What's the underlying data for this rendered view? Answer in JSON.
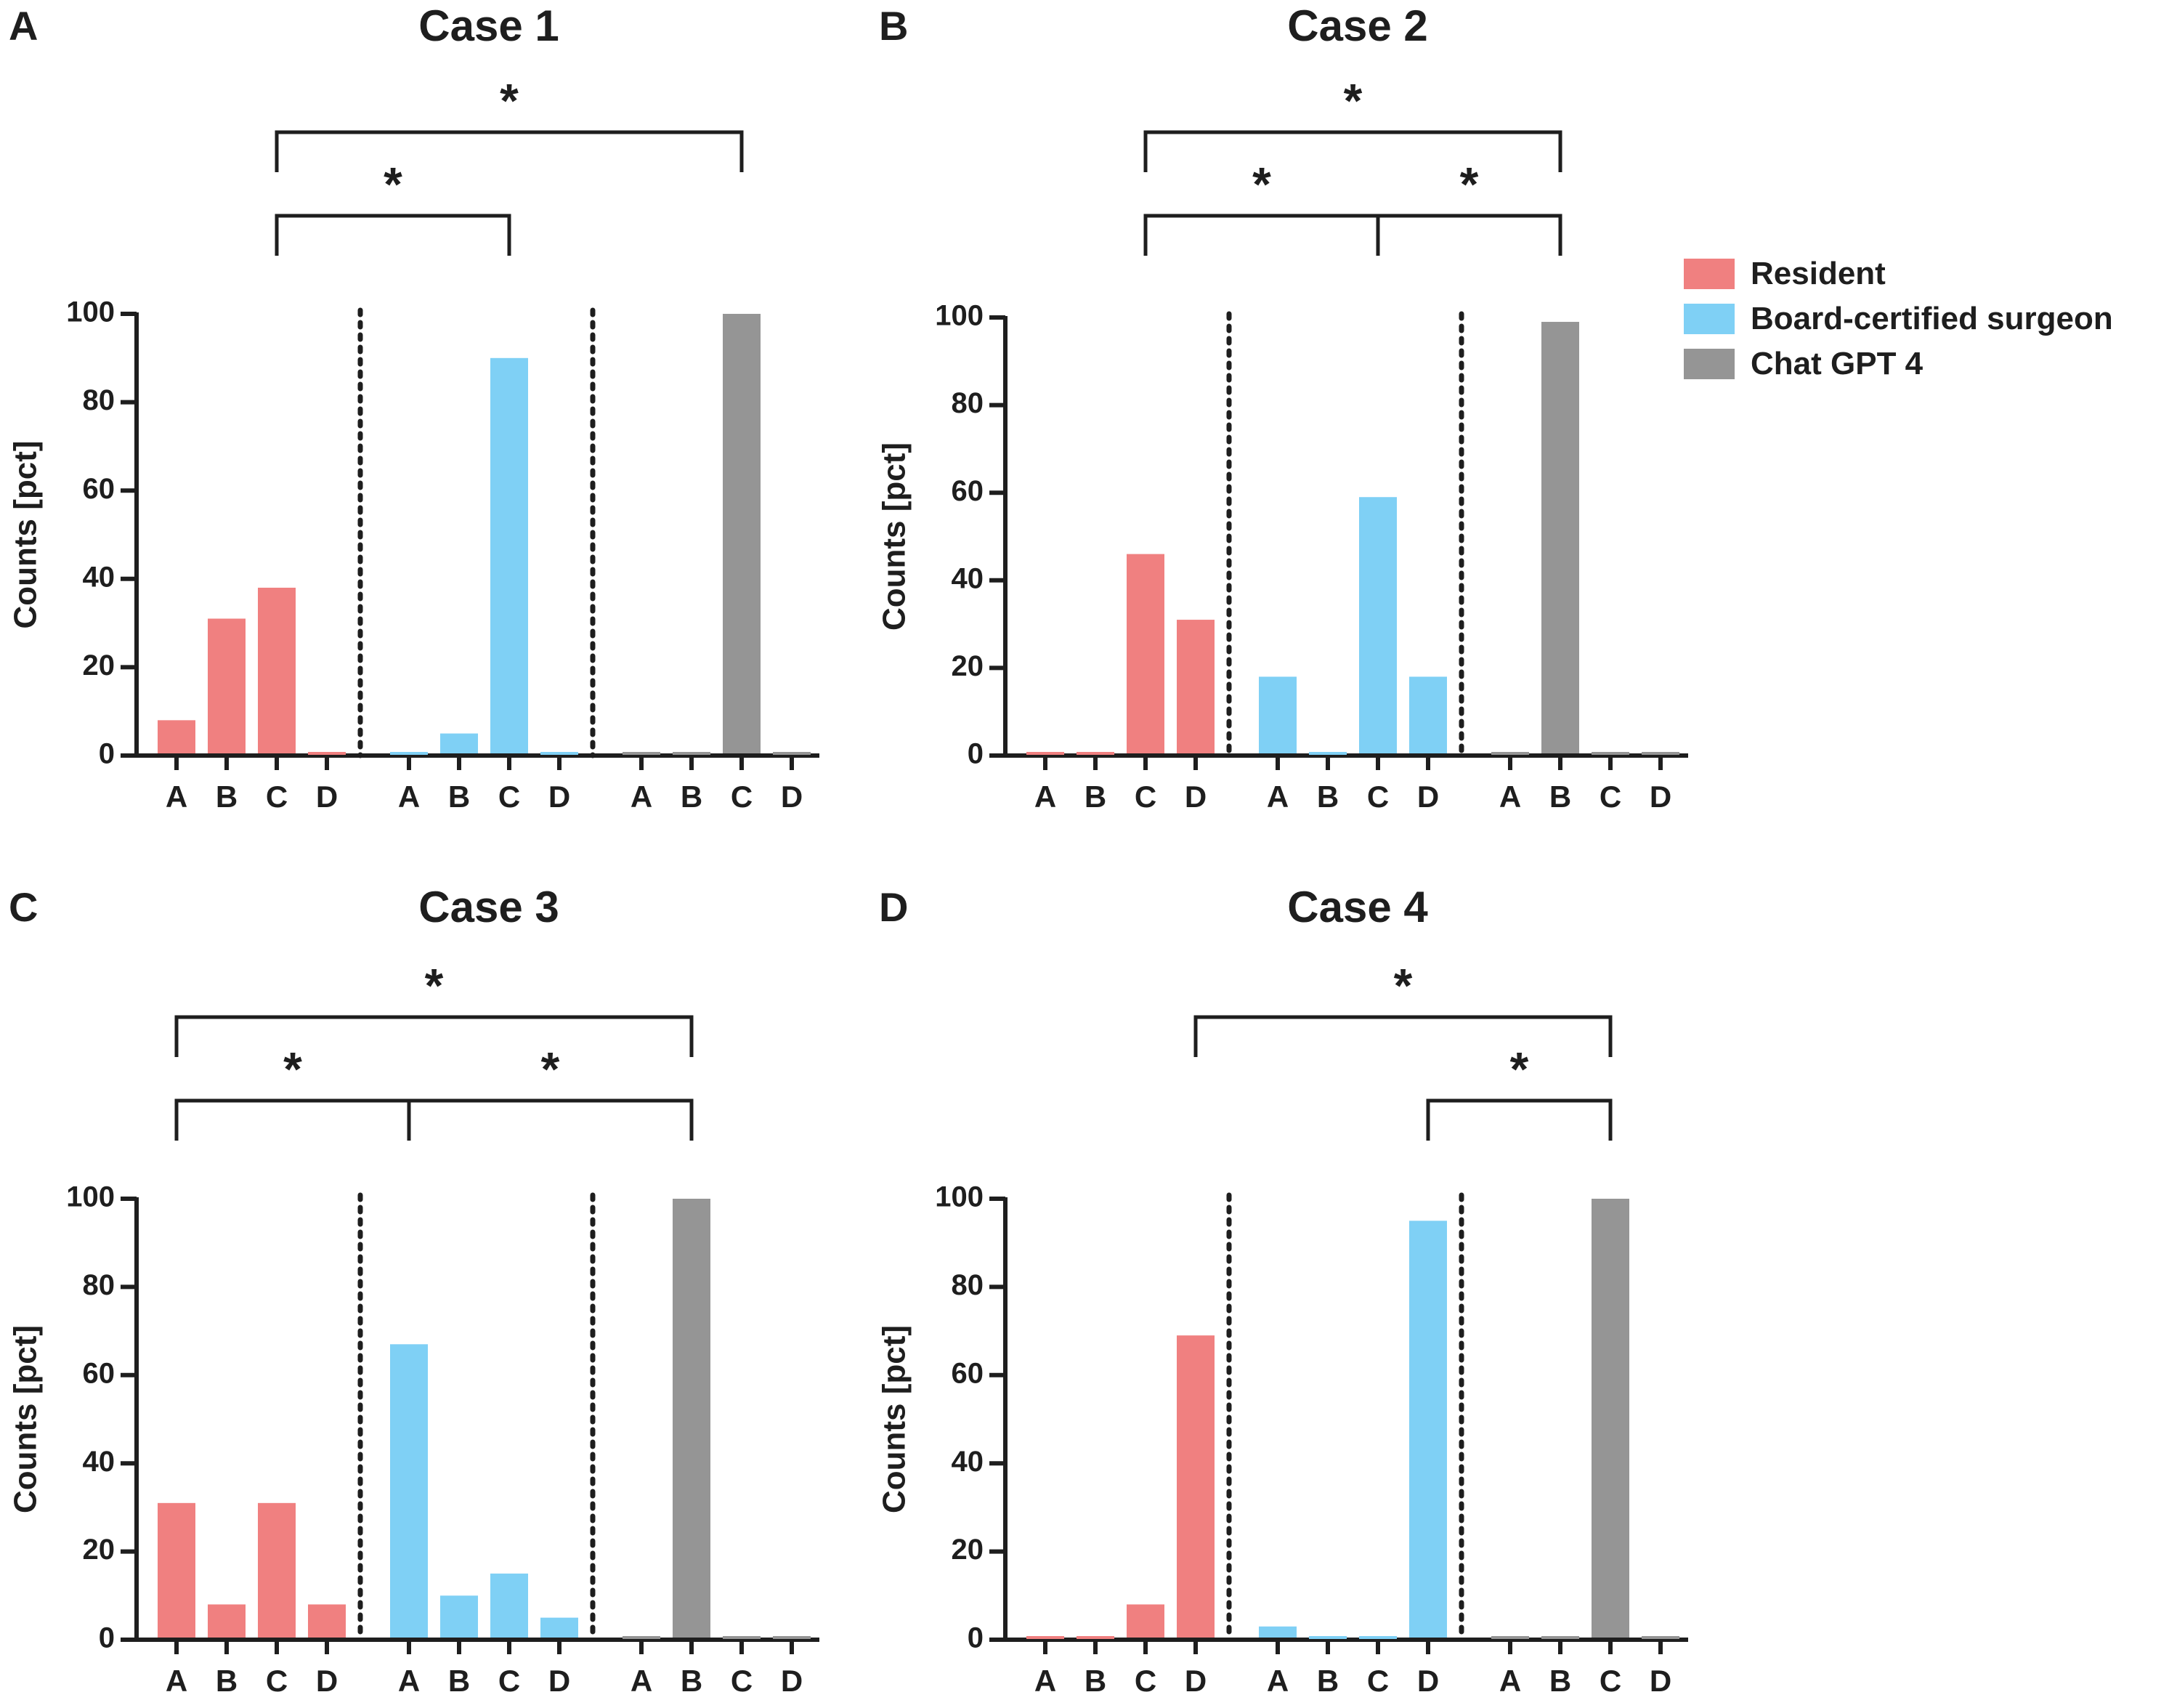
{
  "legend": {
    "items": [
      {
        "label": "Resident",
        "color": "#F08080"
      },
      {
        "label": "Board-certified surgeon",
        "color": "#7FD0F5"
      },
      {
        "label": "Chat GPT 4",
        "color": "#959595"
      }
    ]
  },
  "chart_data": [
    {
      "type": "bar",
      "panel": "A",
      "title": "Case 1",
      "ylabel": "Counts [pct]",
      "ylim": [
        0,
        100
      ],
      "yticks": [
        0,
        20,
        40,
        60,
        80,
        100
      ],
      "categories": [
        "A",
        "B",
        "C",
        "D"
      ],
      "groups": [
        {
          "name": "Resident",
          "values": [
            8,
            31,
            38,
            0
          ]
        },
        {
          "name": "Board-certified surgeon",
          "values": [
            0,
            5,
            90,
            0
          ]
        },
        {
          "name": "Chat GPT 4",
          "values": [
            0,
            0,
            100,
            0
          ]
        }
      ],
      "significance": [
        {
          "from": [
            0,
            2
          ],
          "to": [
            2,
            2
          ],
          "label": "*"
        },
        {
          "from": [
            0,
            2
          ],
          "to": [
            1,
            2
          ],
          "label": "*"
        }
      ]
    },
    {
      "type": "bar",
      "panel": "B",
      "title": "Case 2",
      "ylabel": "Counts [pct]",
      "ylim": [
        0,
        100
      ],
      "yticks": [
        0,
        20,
        40,
        60,
        80,
        100
      ],
      "categories": [
        "A",
        "B",
        "C",
        "D"
      ],
      "groups": [
        {
          "name": "Resident",
          "values": [
            0,
            0,
            46,
            31
          ]
        },
        {
          "name": "Board-certified surgeon",
          "values": [
            18,
            0,
            59,
            18
          ]
        },
        {
          "name": "Chat GPT 4",
          "values": [
            0,
            99,
            0,
            0
          ]
        }
      ],
      "significance": [
        {
          "from": [
            0,
            2
          ],
          "to": [
            2,
            1
          ],
          "label": "*"
        },
        {
          "from": [
            0,
            2
          ],
          "to": [
            1,
            2
          ],
          "label": "*"
        },
        {
          "from": [
            1,
            2
          ],
          "to": [
            2,
            1
          ],
          "label": "*"
        }
      ]
    },
    {
      "type": "bar",
      "panel": "C",
      "title": "Case 3",
      "ylabel": "Counts [pct]",
      "ylim": [
        0,
        100
      ],
      "yticks": [
        0,
        20,
        40,
        60,
        80,
        100
      ],
      "categories": [
        "A",
        "B",
        "C",
        "D"
      ],
      "groups": [
        {
          "name": "Resident",
          "values": [
            31,
            8,
            31,
            8
          ]
        },
        {
          "name": "Board-certified surgeon",
          "values": [
            67,
            10,
            15,
            5
          ]
        },
        {
          "name": "Chat GPT 4",
          "values": [
            0,
            100,
            0,
            0
          ]
        }
      ],
      "significance": [
        {
          "from": [
            0,
            0
          ],
          "to": [
            2,
            1
          ],
          "label": "*"
        },
        {
          "from": [
            0,
            0
          ],
          "to": [
            1,
            0
          ],
          "label": "*"
        },
        {
          "from": [
            1,
            0
          ],
          "to": [
            2,
            1
          ],
          "label": "*"
        }
      ]
    },
    {
      "type": "bar",
      "panel": "D",
      "title": "Case 4",
      "ylabel": "Counts [pct]",
      "ylim": [
        0,
        100
      ],
      "yticks": [
        0,
        20,
        40,
        60,
        80,
        100
      ],
      "categories": [
        "A",
        "B",
        "C",
        "D"
      ],
      "groups": [
        {
          "name": "Resident",
          "values": [
            0,
            0,
            8,
            69
          ]
        },
        {
          "name": "Board-certified surgeon",
          "values": [
            3,
            0,
            0,
            95
          ]
        },
        {
          "name": "Chat GPT 4",
          "values": [
            0,
            0,
            100,
            0
          ]
        }
      ],
      "significance": [
        {
          "from": [
            0,
            3
          ],
          "to": [
            2,
            2
          ],
          "label": "*"
        },
        {
          "from": [
            1,
            3
          ],
          "to": [
            2,
            2
          ],
          "label": "*"
        }
      ]
    }
  ]
}
